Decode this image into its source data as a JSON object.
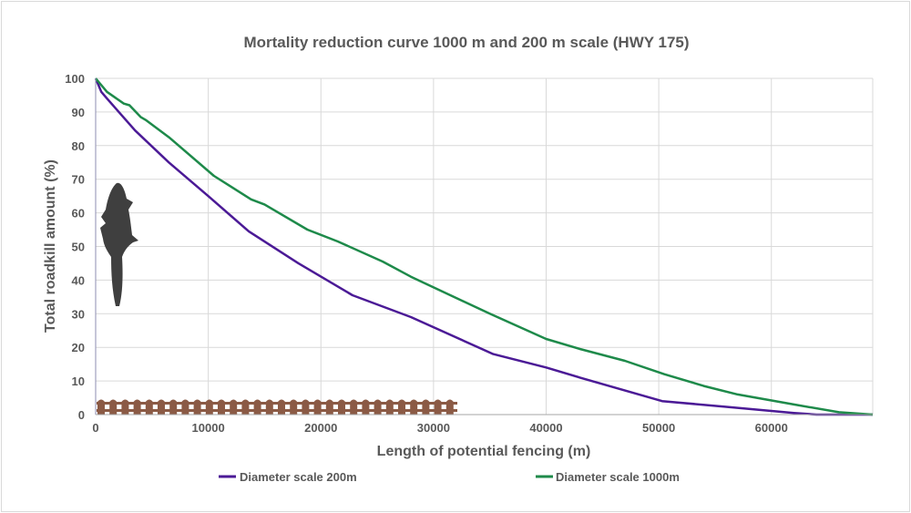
{
  "chart_data": {
    "type": "line",
    "title": "Mortality reduction curve 1000 m and 200 m  scale (HWY 175)",
    "xlabel": "Length of potential fencing (m)",
    "ylabel": "Total roadkill amount (%)",
    "xlim": [
      0,
      69000
    ],
    "ylim": [
      0,
      100
    ],
    "xticks": [
      0,
      10000,
      20000,
      30000,
      40000,
      50000,
      60000
    ],
    "yticks": [
      0,
      10,
      20,
      30,
      40,
      50,
      60,
      70,
      80,
      90,
      100
    ],
    "grid": true,
    "legend": "bottom",
    "series": [
      {
        "name": "Diameter scale 200m",
        "color": "#4b1a96",
        "x": [
          0,
          500,
          1000,
          3500,
          6500,
          10000,
          13600,
          18000,
          22800,
          28000,
          35300,
          40000,
          43000,
          50300,
          56000,
          62000,
          64000,
          69000
        ],
        "y": [
          100,
          96,
          94,
          84.5,
          75,
          65,
          54.5,
          45,
          35.5,
          29,
          18,
          14,
          11,
          4,
          2.3,
          0.5,
          0,
          0
        ]
      },
      {
        "name": "Diameter scale 1000m",
        "color": "#1e8a4a",
        "x": [
          0,
          1000,
          2500,
          3000,
          4000,
          4500,
          6500,
          10500,
          13800,
          15000,
          18800,
          21500,
          25500,
          28000,
          35000,
          40000,
          43000,
          47000,
          50500,
          54000,
          57000,
          62000,
          66000,
          69000
        ],
        "y": [
          100,
          96,
          92.5,
          92,
          88.5,
          87.5,
          82.5,
          71,
          64,
          62.5,
          55,
          51.5,
          45.5,
          41,
          30,
          22.5,
          19.5,
          16,
          12,
          8.5,
          6,
          3,
          0.7,
          0
        ]
      }
    ]
  }
}
